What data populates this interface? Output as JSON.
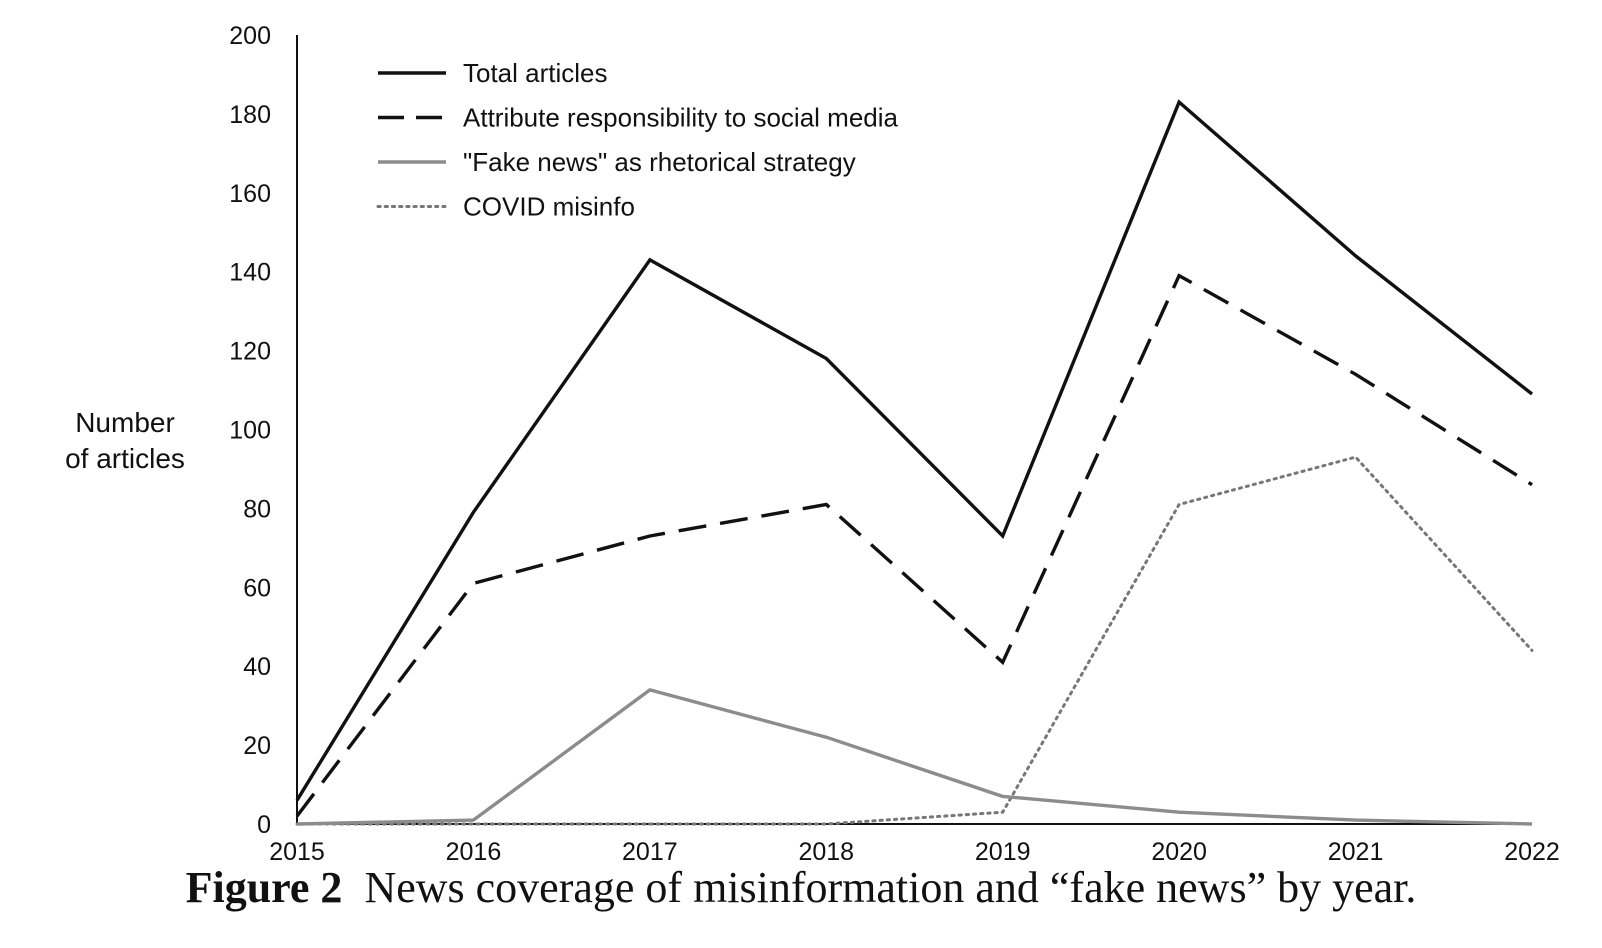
{
  "caption": {
    "figure_number": "Figure 2",
    "text": "News coverage of misinformation and “fake news” by year."
  },
  "chart_data": {
    "type": "line",
    "title": "",
    "xlabel": "",
    "ylabel_lines": [
      "Number",
      "of articles"
    ],
    "x": [
      "2015",
      "2016",
      "2017",
      "2018",
      "2019",
      "2020",
      "2021",
      "2022"
    ],
    "ylim": [
      0,
      200
    ],
    "yticks": [
      "0",
      "20",
      "40",
      "60",
      "80",
      "100",
      "120",
      "140",
      "160",
      "180",
      "200"
    ],
    "grid": false,
    "legend_placement": "top-left",
    "series": [
      {
        "name": "Total articles",
        "style": "solid",
        "color": "#111111",
        "values": [
          6,
          79,
          143,
          118,
          73,
          183,
          144,
          109
        ]
      },
      {
        "name": "Attribute responsibility to social media",
        "style": "dashed",
        "color": "#111111",
        "values": [
          2,
          61,
          73,
          81,
          41,
          139,
          114,
          86
        ]
      },
      {
        "name": "\"Fake news\" as rhetorical strategy",
        "style": "solid",
        "color": "#8c8c8c",
        "values": [
          0,
          1,
          34,
          22,
          7,
          3,
          1,
          0
        ]
      },
      {
        "name": "COVID misinfo",
        "style": "dotted",
        "color": "#777777",
        "values": [
          0,
          0,
          0,
          0,
          3,
          81,
          93,
          44
        ]
      }
    ]
  }
}
